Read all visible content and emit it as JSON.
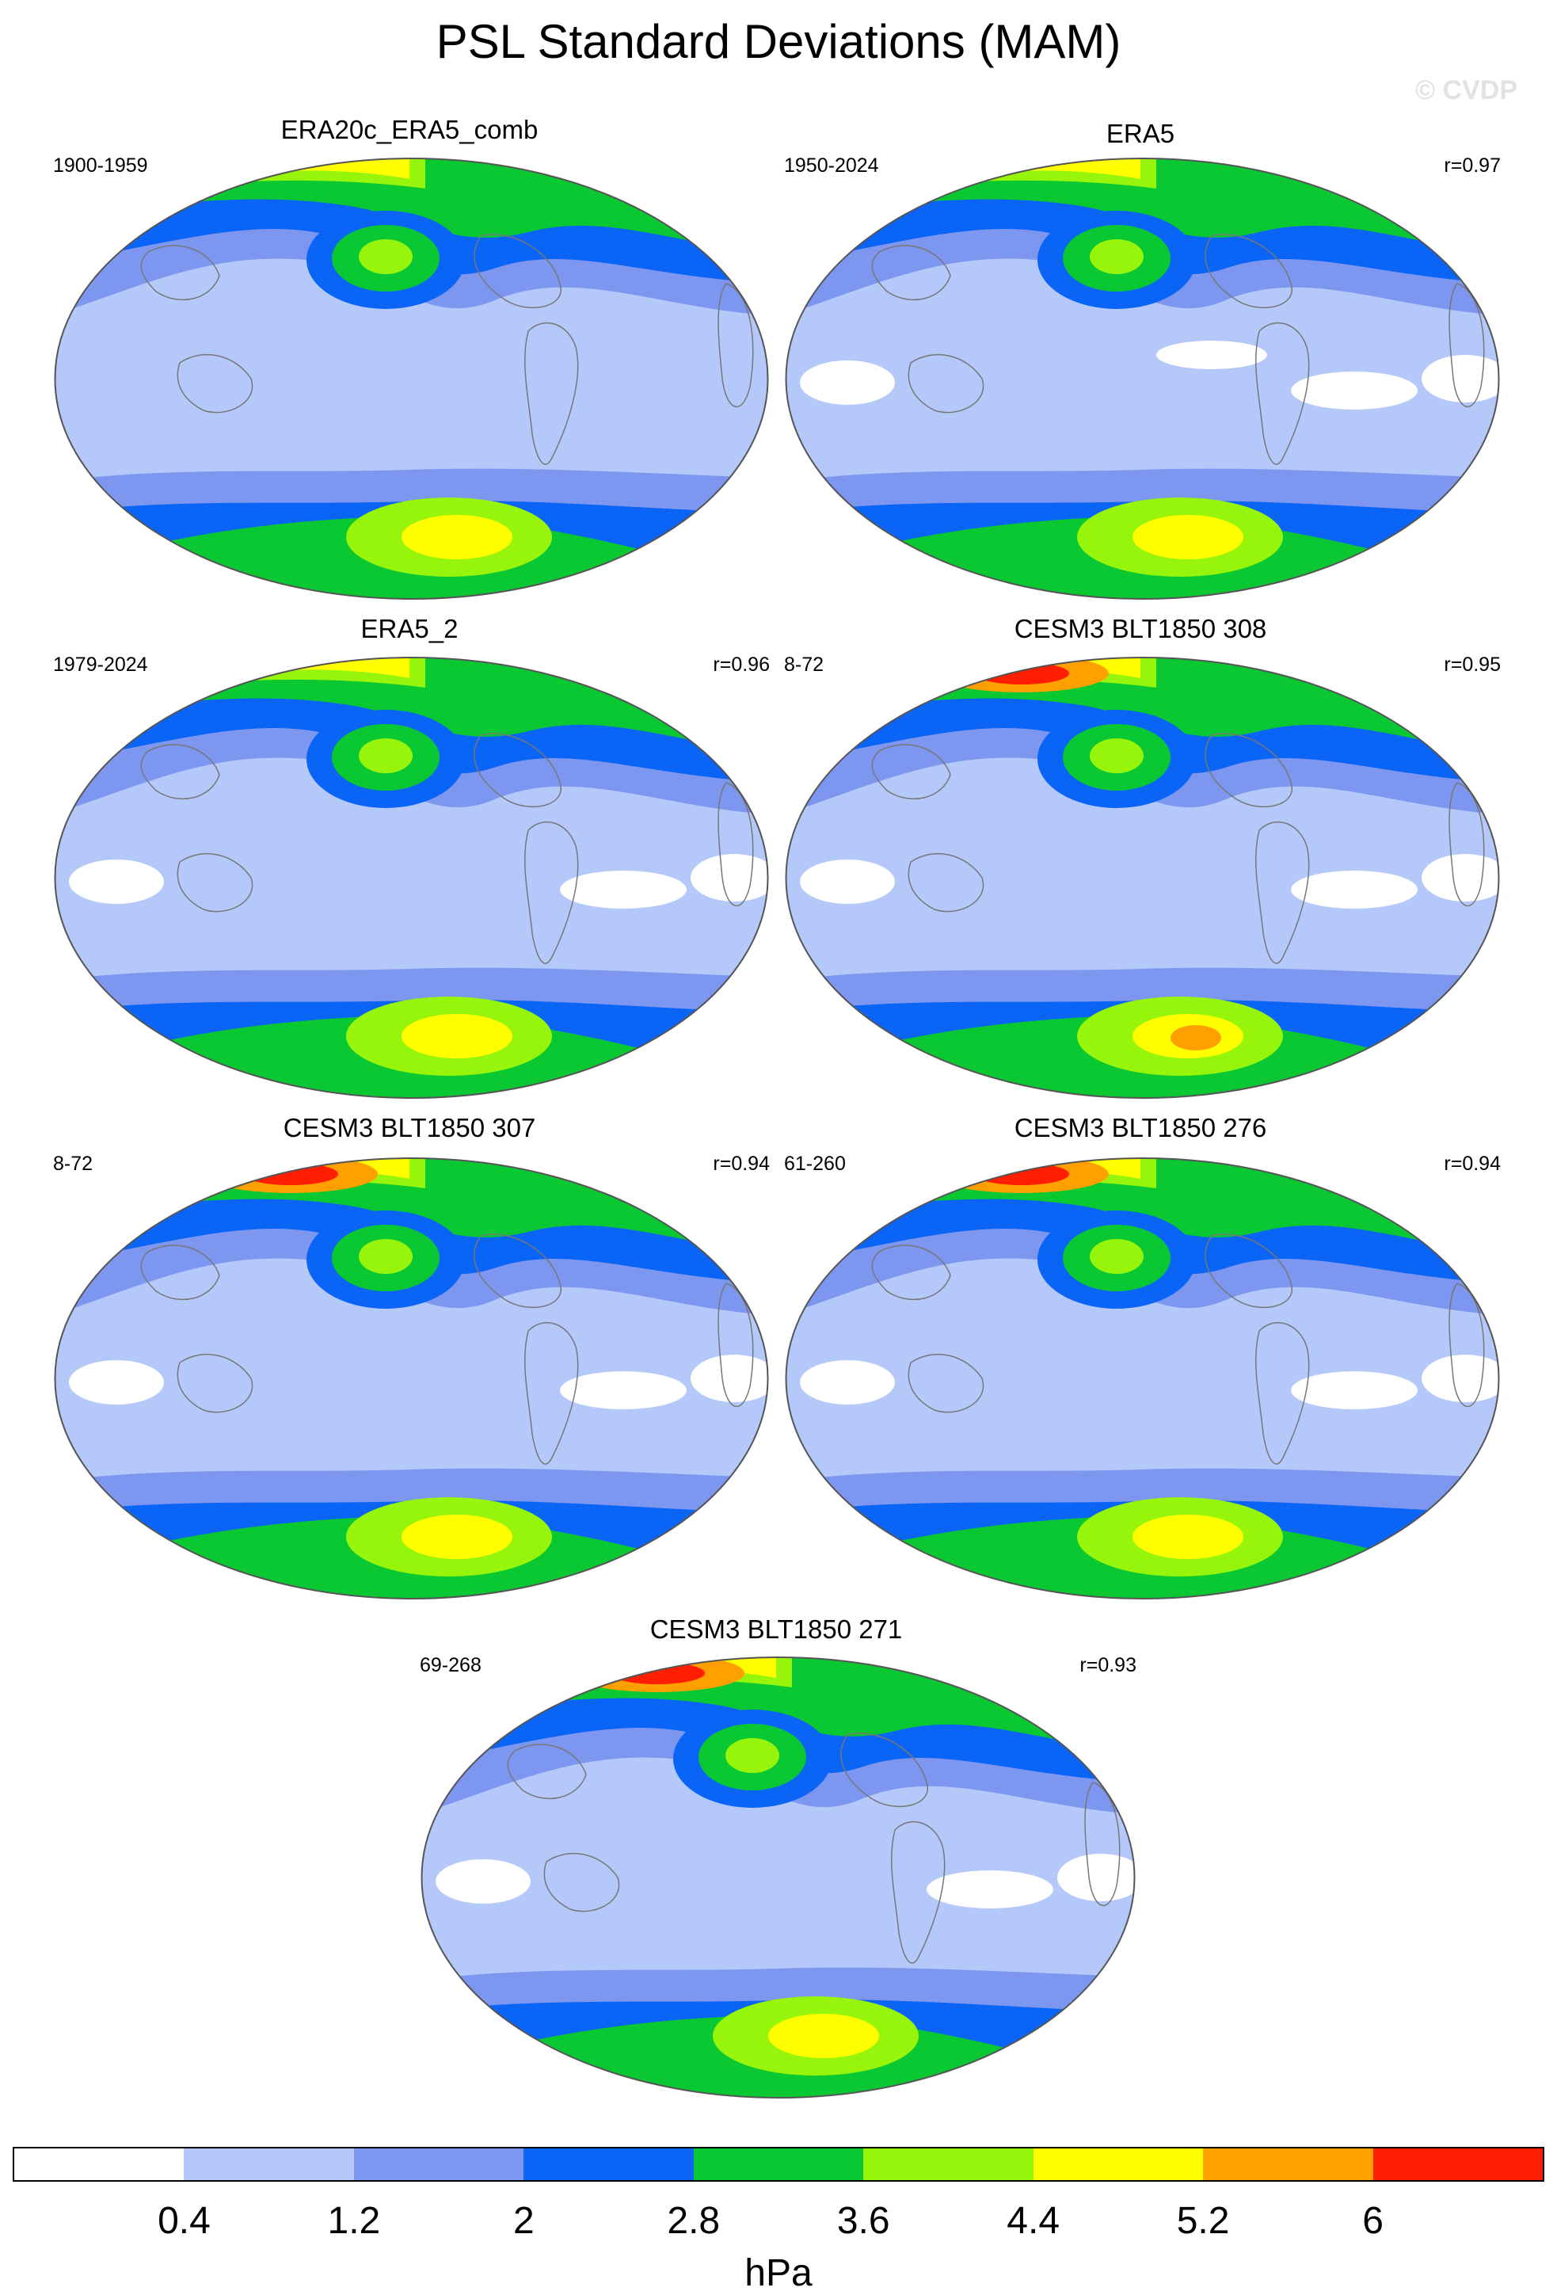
{
  "title": "PSL Standard Deviations (MAM)",
  "watermark": "© CVDP",
  "panels": [
    {
      "name": "ERA20c_ERA5_comb",
      "years": "1900-1959",
      "r": ""
    },
    {
      "name": "ERA5",
      "years": "1950-2024",
      "r": "r=0.97"
    },
    {
      "name": "ERA5_2",
      "years": "1979-2024",
      "r": "r=0.96"
    },
    {
      "name": "CESM3 BLT1850 308",
      "years": "8-72",
      "r": "r=0.95"
    },
    {
      "name": "CESM3 BLT1850 307",
      "years": "8-72",
      "r": "r=0.94"
    },
    {
      "name": "CESM3 BLT1850 276",
      "years": "61-260",
      "r": "r=0.94"
    },
    {
      "name": "CESM3 BLT1850 271",
      "years": "69-268",
      "r": "r=0.93"
    }
  ],
  "colorbar": {
    "colors": [
      "#ffffff",
      "#b4c8fa",
      "#7d96f0",
      "#0a64f5",
      "#0ac832",
      "#96f50a",
      "#ffff00",
      "#ffa000",
      "#ff1e00"
    ],
    "labels": [
      "0.4",
      "1.2",
      "2",
      "2.8",
      "3.6",
      "4.4",
      "5.2",
      "6"
    ],
    "units": "hPa"
  }
}
